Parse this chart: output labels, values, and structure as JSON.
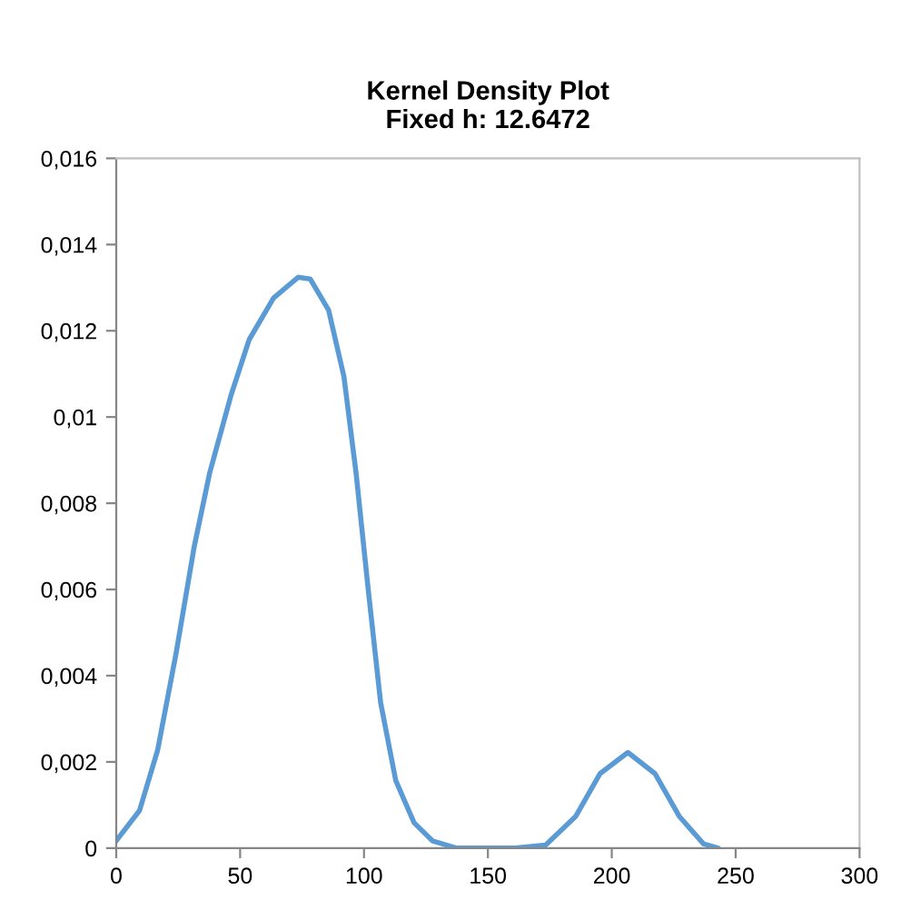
{
  "chart_data": {
    "type": "line",
    "title": "Kernel Density Plot\nFixed h: 12.6472",
    "x": [
      0,
      9.4,
      16.7,
      24.1,
      31.5,
      37.7,
      46.3,
      53.7,
      63.5,
      73.4,
      78.3,
      85.7,
      91.9,
      96.8,
      101.7,
      106.7,
      112.8,
      120.2,
      127.6,
      137.4,
      150,
      161,
      173.3,
      185.5,
      195.3,
      206.5,
      217.4,
      227.2,
      237,
      243
    ],
    "series": [
      {
        "color": "#5b9bd5",
        "values": [
          0.00017,
          0.00087,
          0.00227,
          0.0045,
          0.007,
          0.0087,
          0.0105,
          0.0118,
          0.01276,
          0.01324,
          0.0132,
          0.01248,
          0.01094,
          0.0087,
          0.006,
          0.00338,
          0.00157,
          0.00059,
          0.00017,
          0,
          0,
          0,
          7e-05,
          0.00074,
          0.00173,
          0.00222,
          0.00173,
          0.00074,
          0.0001,
          0
        ]
      }
    ],
    "xlim": [
      0,
      300
    ],
    "xticks": [
      0,
      50,
      100,
      150,
      200,
      250,
      300
    ],
    "ylim": [
      0,
      0.016
    ],
    "yticks": [
      0,
      {
        "value": 0.002,
        "label": "0,002"
      },
      {
        "value": 0.004,
        "label": "0,004"
      },
      {
        "value": 0.006,
        "label": "0,006"
      },
      {
        "value": 0.008,
        "label": "0,008"
      },
      {
        "value": 0.01,
        "label": "0,01"
      },
      {
        "value": 0.012,
        "label": "0,012"
      },
      {
        "value": 0.014,
        "label": "0,014"
      },
      {
        "value": 0.016,
        "label": "0,016"
      }
    ],
    "grid": false,
    "marker": "none",
    "line_style": "solid"
  }
}
